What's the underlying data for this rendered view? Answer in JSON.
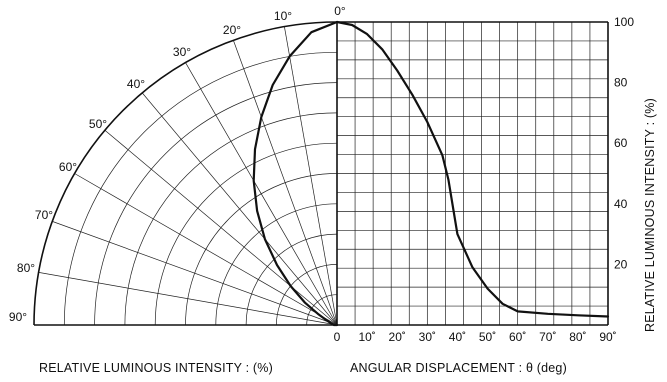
{
  "chart_data": [
    {
      "type": "polar",
      "theta_unit": "deg",
      "r_unit": "%",
      "theta_ticks": [
        "0°",
        "10°",
        "20°",
        "30°",
        "40°",
        "50°",
        "60°",
        "70°",
        "80°",
        "90°"
      ],
      "theta_range": [
        0,
        90
      ],
      "r_range": [
        0,
        100
      ],
      "grid": true,
      "xlabel": "RELATIVE  LUMINOUS  INTENSITY : (%)",
      "points": [
        {
          "theta": 0,
          "r": 100
        },
        {
          "theta": 5,
          "r": 97
        },
        {
          "theta": 10,
          "r": 90
        },
        {
          "theta": 15,
          "r": 82
        },
        {
          "theta": 20,
          "r": 73
        },
        {
          "theta": 25,
          "r": 64
        },
        {
          "theta": 30,
          "r": 55
        },
        {
          "theta": 35,
          "r": 46
        },
        {
          "theta": 40,
          "r": 37
        },
        {
          "theta": 45,
          "r": 28
        },
        {
          "theta": 50,
          "r": 20
        },
        {
          "theta": 55,
          "r": 13
        },
        {
          "theta": 60,
          "r": 7
        },
        {
          "theta": 65,
          "r": 4
        },
        {
          "theta": 70,
          "r": 2.5
        },
        {
          "theta": 80,
          "r": 1.5
        },
        {
          "theta": 90,
          "r": 1
        }
      ]
    },
    {
      "type": "line",
      "x_unit": "deg",
      "x": [
        0,
        5,
        10,
        15,
        20,
        25,
        30,
        35,
        37,
        40,
        45,
        50,
        55,
        60,
        70,
        80,
        90
      ],
      "y": [
        100,
        99,
        96,
        91,
        84,
        76,
        67,
        56,
        48,
        30,
        19,
        12,
        7,
        4.5,
        3.7,
        3.2,
        2.8
      ],
      "x_ticks": [
        "0",
        "10˚",
        "20˚",
        "30˚",
        "40˚",
        "50˚",
        "60˚",
        "70˚",
        "80˚",
        "90˚"
      ],
      "y_ticks": [
        "20",
        "40",
        "60",
        "80",
        "100"
      ],
      "xlim": [
        0,
        90
      ],
      "ylim": [
        0,
        100
      ],
      "grid": true,
      "xlabel": "ANGULAR  DISPLACEMENT : θ  (deg)",
      "ylabel": "RELATIVE  LUMINOUS  INTENSITY : (%)"
    }
  ]
}
